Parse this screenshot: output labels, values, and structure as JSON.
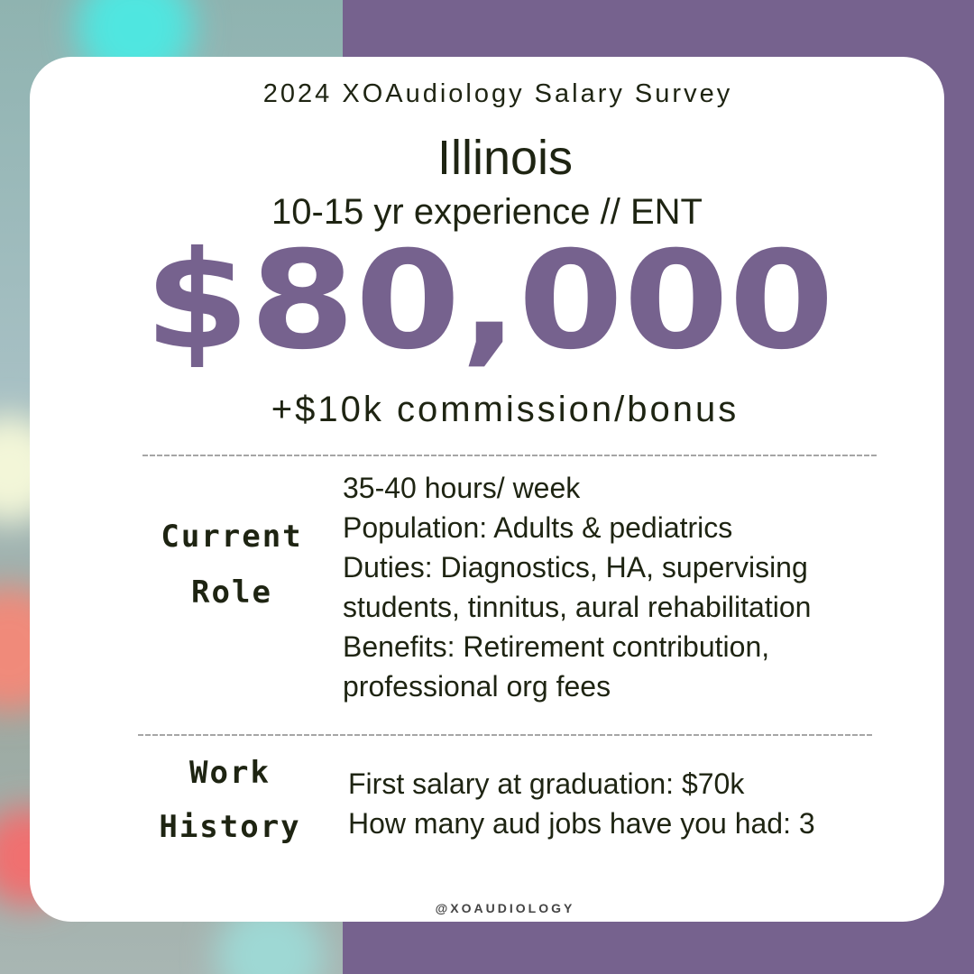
{
  "header": {
    "title": "2024 XOAudiology Salary Survey",
    "state": "Illinois",
    "subtitle": "10-15 yr experience // ENT"
  },
  "salary": {
    "amount": "$80,000",
    "bonus": "+$10k commission/bonus"
  },
  "sections": [
    {
      "label": [
        "Current",
        "Role"
      ],
      "lines": [
        "35-40 hours/ week",
        "Population: Adults & pediatrics",
        "Duties: Diagnostics, HA, supervising",
        "students, tinnitus, aural rehabilitation",
        "Benefits: Retirement contribution,",
        "professional org fees"
      ]
    },
    {
      "label": [
        "Work",
        "History"
      ],
      "lines": [
        "First salary at graduation: $70k",
        "How many aud jobs have you had: 3"
      ]
    }
  ],
  "footer": "@XOAUDIOLOGY"
}
